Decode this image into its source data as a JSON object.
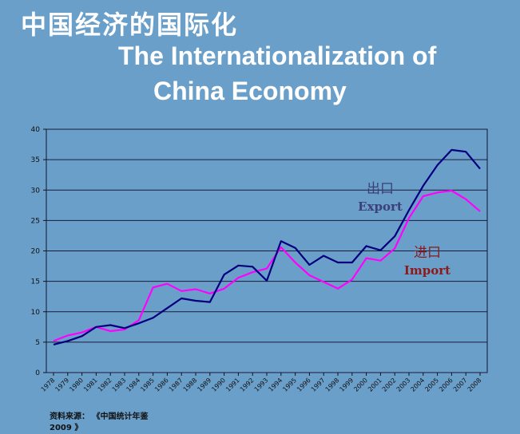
{
  "header": {
    "title_cn": "中国经济的国际化",
    "title_en_line1": "The Internationalization of",
    "title_en_line2": "China Economy"
  },
  "source": {
    "line1": "资料来源：  《中国统计年鉴",
    "line2": "2009 》"
  },
  "colors": {
    "background": "#6a9fca",
    "export_line": "#00007f",
    "import_line": "#ff00ff",
    "export_label": "#3b3f7a",
    "import_label": "#8b1a1a"
  },
  "chart_data": {
    "type": "line",
    "x": [
      "1978",
      "1979",
      "1980",
      "1981",
      "1982",
      "1983",
      "1984",
      "1985",
      "1986",
      "1987",
      "1988",
      "1989",
      "1990",
      "1991",
      "1992",
      "1993",
      "1994",
      "1995",
      "1996",
      "1997",
      "1998",
      "1999",
      "2000",
      "2001",
      "2002",
      "2003",
      "2004",
      "2005",
      "2006",
      "2007",
      "2008"
    ],
    "ylim": [
      0,
      40
    ],
    "yticks": [
      0,
      5,
      10,
      15,
      20,
      25,
      30,
      35,
      40
    ],
    "grid": true,
    "series": [
      {
        "id": "export",
        "label_cn": "出口",
        "label_en": "Export",
        "values": [
          4.6,
          5.2,
          6.0,
          7.5,
          7.8,
          7.3,
          8.1,
          9.0,
          10.6,
          12.2,
          11.8,
          11.6,
          16.1,
          17.6,
          17.4,
          15.1,
          21.6,
          20.5,
          17.7,
          19.2,
          18.1,
          18.1,
          20.8,
          20.1,
          22.4,
          26.7,
          30.7,
          34.1,
          36.6,
          36.3,
          33.5
        ]
      },
      {
        "id": "import",
        "label_cn": "进口",
        "label_en": "Import",
        "values": [
          5.2,
          6.1,
          6.6,
          7.5,
          6.8,
          7.1,
          8.6,
          14.0,
          14.6,
          13.4,
          13.7,
          13.0,
          13.8,
          15.6,
          16.5,
          17.1,
          20.6,
          18.1,
          16.0,
          14.9,
          13.8,
          15.3,
          18.8,
          18.4,
          20.4,
          25.4,
          29.0,
          29.6,
          29.9,
          28.5,
          26.5
        ]
      }
    ]
  }
}
